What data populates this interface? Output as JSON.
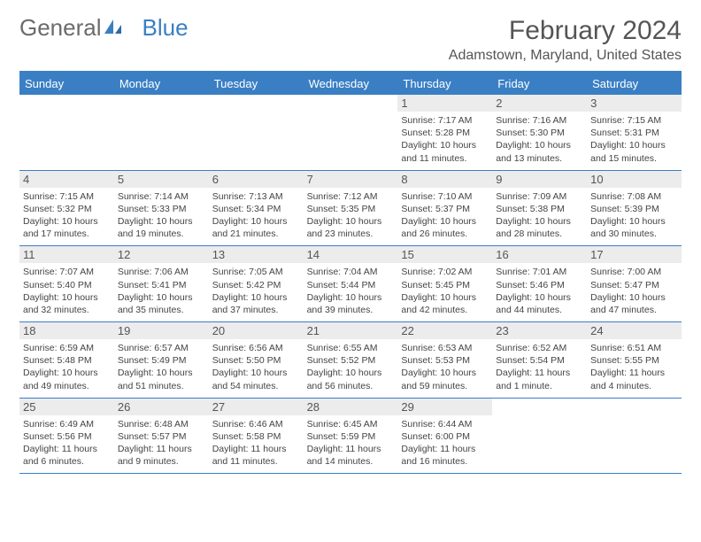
{
  "logo": {
    "part1": "General",
    "part2": "Blue"
  },
  "title": "February 2024",
  "location": "Adamstown, Maryland, United States",
  "header_bg": "#3a7fc4",
  "day_names": [
    "Sunday",
    "Monday",
    "Tuesday",
    "Wednesday",
    "Thursday",
    "Friday",
    "Saturday"
  ],
  "weeks": [
    [
      {
        "date": "",
        "lines": []
      },
      {
        "date": "",
        "lines": []
      },
      {
        "date": "",
        "lines": []
      },
      {
        "date": "",
        "lines": []
      },
      {
        "date": "1",
        "lines": [
          "Sunrise: 7:17 AM",
          "Sunset: 5:28 PM",
          "Daylight: 10 hours and 11 minutes."
        ]
      },
      {
        "date": "2",
        "lines": [
          "Sunrise: 7:16 AM",
          "Sunset: 5:30 PM",
          "Daylight: 10 hours and 13 minutes."
        ]
      },
      {
        "date": "3",
        "lines": [
          "Sunrise: 7:15 AM",
          "Sunset: 5:31 PM",
          "Daylight: 10 hours and 15 minutes."
        ]
      }
    ],
    [
      {
        "date": "4",
        "lines": [
          "Sunrise: 7:15 AM",
          "Sunset: 5:32 PM",
          "Daylight: 10 hours and 17 minutes."
        ]
      },
      {
        "date": "5",
        "lines": [
          "Sunrise: 7:14 AM",
          "Sunset: 5:33 PM",
          "Daylight: 10 hours and 19 minutes."
        ]
      },
      {
        "date": "6",
        "lines": [
          "Sunrise: 7:13 AM",
          "Sunset: 5:34 PM",
          "Daylight: 10 hours and 21 minutes."
        ]
      },
      {
        "date": "7",
        "lines": [
          "Sunrise: 7:12 AM",
          "Sunset: 5:35 PM",
          "Daylight: 10 hours and 23 minutes."
        ]
      },
      {
        "date": "8",
        "lines": [
          "Sunrise: 7:10 AM",
          "Sunset: 5:37 PM",
          "Daylight: 10 hours and 26 minutes."
        ]
      },
      {
        "date": "9",
        "lines": [
          "Sunrise: 7:09 AM",
          "Sunset: 5:38 PM",
          "Daylight: 10 hours and 28 minutes."
        ]
      },
      {
        "date": "10",
        "lines": [
          "Sunrise: 7:08 AM",
          "Sunset: 5:39 PM",
          "Daylight: 10 hours and 30 minutes."
        ]
      }
    ],
    [
      {
        "date": "11",
        "lines": [
          "Sunrise: 7:07 AM",
          "Sunset: 5:40 PM",
          "Daylight: 10 hours and 32 minutes."
        ]
      },
      {
        "date": "12",
        "lines": [
          "Sunrise: 7:06 AM",
          "Sunset: 5:41 PM",
          "Daylight: 10 hours and 35 minutes."
        ]
      },
      {
        "date": "13",
        "lines": [
          "Sunrise: 7:05 AM",
          "Sunset: 5:42 PM",
          "Daylight: 10 hours and 37 minutes."
        ]
      },
      {
        "date": "14",
        "lines": [
          "Sunrise: 7:04 AM",
          "Sunset: 5:44 PM",
          "Daylight: 10 hours and 39 minutes."
        ]
      },
      {
        "date": "15",
        "lines": [
          "Sunrise: 7:02 AM",
          "Sunset: 5:45 PM",
          "Daylight: 10 hours and 42 minutes."
        ]
      },
      {
        "date": "16",
        "lines": [
          "Sunrise: 7:01 AM",
          "Sunset: 5:46 PM",
          "Daylight: 10 hours and 44 minutes."
        ]
      },
      {
        "date": "17",
        "lines": [
          "Sunrise: 7:00 AM",
          "Sunset: 5:47 PM",
          "Daylight: 10 hours and 47 minutes."
        ]
      }
    ],
    [
      {
        "date": "18",
        "lines": [
          "Sunrise: 6:59 AM",
          "Sunset: 5:48 PM",
          "Daylight: 10 hours and 49 minutes."
        ]
      },
      {
        "date": "19",
        "lines": [
          "Sunrise: 6:57 AM",
          "Sunset: 5:49 PM",
          "Daylight: 10 hours and 51 minutes."
        ]
      },
      {
        "date": "20",
        "lines": [
          "Sunrise: 6:56 AM",
          "Sunset: 5:50 PM",
          "Daylight: 10 hours and 54 minutes."
        ]
      },
      {
        "date": "21",
        "lines": [
          "Sunrise: 6:55 AM",
          "Sunset: 5:52 PM",
          "Daylight: 10 hours and 56 minutes."
        ]
      },
      {
        "date": "22",
        "lines": [
          "Sunrise: 6:53 AM",
          "Sunset: 5:53 PM",
          "Daylight: 10 hours and 59 minutes."
        ]
      },
      {
        "date": "23",
        "lines": [
          "Sunrise: 6:52 AM",
          "Sunset: 5:54 PM",
          "Daylight: 11 hours and 1 minute."
        ]
      },
      {
        "date": "24",
        "lines": [
          "Sunrise: 6:51 AM",
          "Sunset: 5:55 PM",
          "Daylight: 11 hours and 4 minutes."
        ]
      }
    ],
    [
      {
        "date": "25",
        "lines": [
          "Sunrise: 6:49 AM",
          "Sunset: 5:56 PM",
          "Daylight: 11 hours and 6 minutes."
        ]
      },
      {
        "date": "26",
        "lines": [
          "Sunrise: 6:48 AM",
          "Sunset: 5:57 PM",
          "Daylight: 11 hours and 9 minutes."
        ]
      },
      {
        "date": "27",
        "lines": [
          "Sunrise: 6:46 AM",
          "Sunset: 5:58 PM",
          "Daylight: 11 hours and 11 minutes."
        ]
      },
      {
        "date": "28",
        "lines": [
          "Sunrise: 6:45 AM",
          "Sunset: 5:59 PM",
          "Daylight: 11 hours and 14 minutes."
        ]
      },
      {
        "date": "29",
        "lines": [
          "Sunrise: 6:44 AM",
          "Sunset: 6:00 PM",
          "Daylight: 11 hours and 16 minutes."
        ]
      },
      {
        "date": "",
        "lines": []
      },
      {
        "date": "",
        "lines": []
      }
    ]
  ]
}
